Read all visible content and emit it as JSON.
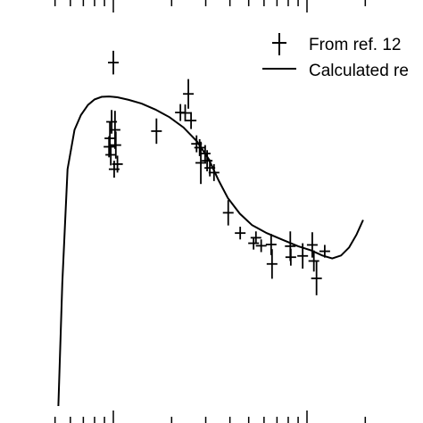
{
  "chart_data": {
    "type": "scatter",
    "x_scale": "log",
    "xlim": [
      0.5,
      20
    ],
    "ylim": [
      0,
      1
    ],
    "grid": false,
    "legend_position": "top-right",
    "colors": {
      "line": "#000000",
      "points": "#000000",
      "background": "#ffffff"
    },
    "series": [
      {
        "name": "From ref. 12",
        "kind": "points-with-errorbars",
        "points": [
          {
            "x": 1.0,
            "y": 0.852,
            "dy": 0.028
          },
          {
            "x": 0.98,
            "y": 0.712,
            "dy": 0.028
          },
          {
            "x": 1.02,
            "y": 0.693,
            "dy": 0.045
          },
          {
            "x": 0.96,
            "y": 0.673,
            "dy": 0.04
          },
          {
            "x": 1.03,
            "y": 0.657,
            "dy": 0.032
          },
          {
            "x": 0.95,
            "y": 0.653,
            "dy": 0.025
          },
          {
            "x": 0.97,
            "y": 0.634,
            "dy": 0.025
          },
          {
            "x": 1.05,
            "y": 0.612,
            "dy": 0.02
          },
          {
            "x": 1.01,
            "y": 0.6,
            "dy": 0.02
          },
          {
            "x": 1.67,
            "y": 0.69,
            "dy": 0.03
          },
          {
            "x": 2.22,
            "y": 0.734,
            "dy": 0.02
          },
          {
            "x": 2.35,
            "y": 0.733,
            "dy": 0.02
          },
          {
            "x": 2.44,
            "y": 0.778,
            "dy": 0.035
          },
          {
            "x": 2.52,
            "y": 0.715,
            "dy": 0.02
          },
          {
            "x": 2.69,
            "y": 0.66,
            "dy": 0.02
          },
          {
            "x": 2.79,
            "y": 0.651,
            "dy": 0.02
          },
          {
            "x": 2.83,
            "y": 0.615,
            "dy": 0.05
          },
          {
            "x": 2.98,
            "y": 0.637,
            "dy": 0.02
          },
          {
            "x": 3.05,
            "y": 0.62,
            "dy": 0.025
          },
          {
            "x": 3.15,
            "y": 0.603,
            "dy": 0.02
          },
          {
            "x": 3.31,
            "y": 0.592,
            "dy": 0.02
          },
          {
            "x": 3.92,
            "y": 0.497,
            "dy": 0.03
          },
          {
            "x": 4.52,
            "y": 0.449,
            "dy": 0.015
          },
          {
            "x": 5.3,
            "y": 0.425,
            "dy": 0.015
          },
          {
            "x": 5.45,
            "y": 0.438,
            "dy": 0.015
          },
          {
            "x": 5.8,
            "y": 0.419,
            "dy": 0.015
          },
          {
            "x": 6.53,
            "y": 0.422,
            "dy": 0.025
          },
          {
            "x": 6.6,
            "y": 0.376,
            "dy": 0.035
          },
          {
            "x": 8.2,
            "y": 0.418,
            "dy": 0.035
          },
          {
            "x": 8.25,
            "y": 0.392,
            "dy": 0.02
          },
          {
            "x": 9.5,
            "y": 0.395,
            "dy": 0.03
          },
          {
            "x": 10.65,
            "y": 0.421,
            "dy": 0.03
          },
          {
            "x": 10.85,
            "y": 0.383,
            "dy": 0.025
          },
          {
            "x": 11.2,
            "y": 0.342,
            "dy": 0.04
          },
          {
            "x": 12.35,
            "y": 0.406,
            "dy": 0.015
          }
        ]
      },
      {
        "name": "Calculated re",
        "kind": "line",
        "points": [
          {
            "x": 0.52,
            "y": 0.04
          },
          {
            "x": 0.545,
            "y": 0.33
          },
          {
            "x": 0.58,
            "y": 0.6
          },
          {
            "x": 0.63,
            "y": 0.693
          },
          {
            "x": 0.68,
            "y": 0.728
          },
          {
            "x": 0.74,
            "y": 0.752
          },
          {
            "x": 0.8,
            "y": 0.765
          },
          {
            "x": 0.87,
            "y": 0.771
          },
          {
            "x": 0.95,
            "y": 0.772
          },
          {
            "x": 1.05,
            "y": 0.77
          },
          {
            "x": 1.2,
            "y": 0.764
          },
          {
            "x": 1.4,
            "y": 0.755
          },
          {
            "x": 1.65,
            "y": 0.741
          },
          {
            "x": 1.95,
            "y": 0.723
          },
          {
            "x": 2.3,
            "y": 0.699
          },
          {
            "x": 2.7,
            "y": 0.666
          },
          {
            "x": 3.1,
            "y": 0.625
          },
          {
            "x": 3.5,
            "y": 0.573
          },
          {
            "x": 3.9,
            "y": 0.532
          },
          {
            "x": 4.5,
            "y": 0.495
          },
          {
            "x": 5.2,
            "y": 0.468
          },
          {
            "x": 6.2,
            "y": 0.449
          },
          {
            "x": 7.5,
            "y": 0.433
          },
          {
            "x": 9.0,
            "y": 0.418
          },
          {
            "x": 10.5,
            "y": 0.408
          },
          {
            "x": 12.0,
            "y": 0.396
          },
          {
            "x": 13.5,
            "y": 0.389
          },
          {
            "x": 15.0,
            "y": 0.396
          },
          {
            "x": 16.5,
            "y": 0.415
          },
          {
            "x": 18.0,
            "y": 0.445
          },
          {
            "x": 19.5,
            "y": 0.48
          }
        ]
      }
    ]
  }
}
